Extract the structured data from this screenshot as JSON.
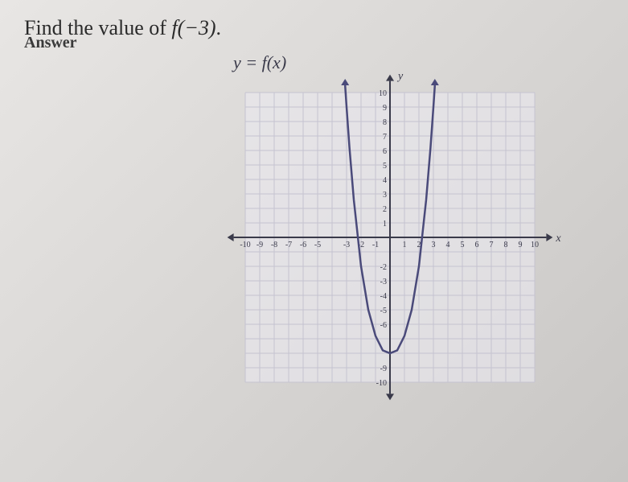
{
  "question": {
    "prefix": "Find the value of ",
    "func": "f",
    "arg": "(−3)",
    "suffix": "."
  },
  "equation": {
    "text": "y = f(x)"
  },
  "axis_labels": {
    "y": "y",
    "x": "x"
  },
  "chart": {
    "type": "line",
    "xlim": [
      -10,
      10
    ],
    "ylim": [
      -10,
      10
    ],
    "xtick_labels_neg": [
      "-10",
      "-9",
      "-8",
      "-7",
      "-6",
      "-5",
      "",
      "-3",
      "-2",
      "-1"
    ],
    "xtick_labels_pos": [
      "1",
      "2",
      "3",
      "4",
      "5",
      "6",
      "7",
      "8",
      "9",
      "10"
    ],
    "ytick_labels_pos": [
      "1",
      "2",
      "3",
      "4",
      "5",
      "6",
      "7",
      "8",
      "9",
      "10"
    ],
    "ytick_labels_neg": [
      "",
      "-2",
      "-3",
      "-4",
      "-5",
      "-6",
      "",
      "",
      "-9",
      "-10"
    ],
    "grid_color": "#c5c3d0",
    "axis_color": "#3a3a4a",
    "curve_color": "#4a4a7a",
    "background_color": "rgba(235,233,240,0.6)",
    "tick_fontsize": 10,
    "axis_stroke_width": 2,
    "curve_stroke_width": 2.5,
    "curve_points": [
      [
        -3.1,
        10.5
      ],
      [
        -3.0,
        9.0
      ],
      [
        -2.8,
        6.2
      ],
      [
        -2.5,
        2.6
      ],
      [
        -2.0,
        -2.0
      ],
      [
        -1.5,
        -5.0
      ],
      [
        -1.0,
        -6.8
      ],
      [
        -0.5,
        -7.8
      ],
      [
        0.0,
        -8.0
      ],
      [
        0.5,
        -7.8
      ],
      [
        1.0,
        -6.8
      ],
      [
        1.5,
        -5.0
      ],
      [
        2.0,
        -2.0
      ],
      [
        2.5,
        2.6
      ],
      [
        2.8,
        6.2
      ],
      [
        3.0,
        9.0
      ],
      [
        3.1,
        10.5
      ]
    ]
  },
  "answer": {
    "label": "Answer",
    "hint": ""
  }
}
